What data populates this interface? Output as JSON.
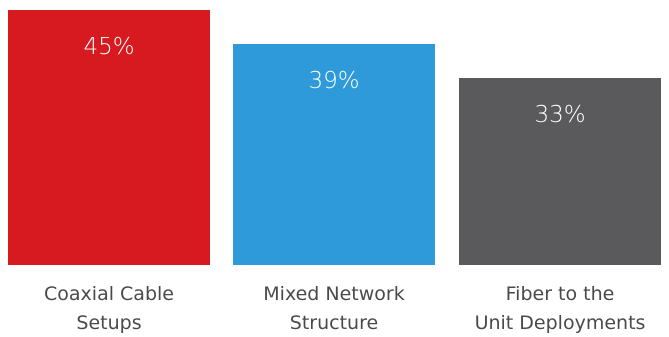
{
  "chart_data": {
    "type": "bar",
    "categories": [
      [
        "Coaxial Cable",
        "Setups"
      ],
      [
        "Mixed Network",
        "Structure"
      ],
      [
        "Fiber to the",
        "Unit Deployments"
      ]
    ],
    "values": [
      45,
      39,
      33
    ],
    "value_labels": [
      "45%",
      "39%",
      "33%"
    ],
    "colors": [
      "#d71920",
      "#2e9ad9",
      "#5a5a5c"
    ],
    "title": "",
    "xlabel": "",
    "ylabel": "",
    "ylim": [
      0,
      45
    ],
    "grid": false
  }
}
